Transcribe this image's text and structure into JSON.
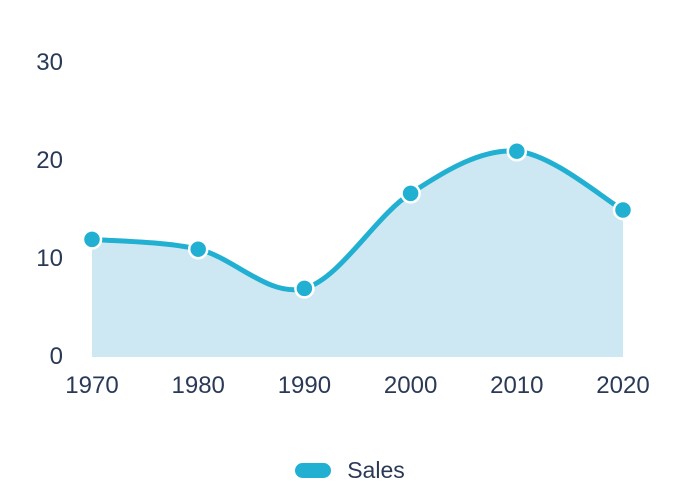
{
  "chart_data": {
    "type": "area",
    "title": "",
    "xlabel": "",
    "ylabel": "",
    "categories": [
      "1970",
      "1980",
      "1990",
      "2000",
      "2010",
      "2020"
    ],
    "series": [
      {
        "name": "Sales",
        "values": [
          12,
          11,
          7,
          16.7,
          21,
          15
        ]
      }
    ],
    "yticks": [
      30,
      20,
      10,
      0
    ],
    "ylim": [
      0,
      30
    ],
    "grid": false,
    "smooth": true,
    "markers": true,
    "legend_position": "bottom",
    "colors": {
      "line": "#22b0d2",
      "marker": "#22b0d2",
      "marker_border": "#ffffff",
      "area_fill": "#cde8f2",
      "text": "#2a3a56",
      "background": "#ffffff"
    }
  },
  "legend": {
    "items": [
      {
        "label": "Sales",
        "color": "#22b0d2"
      }
    ]
  }
}
